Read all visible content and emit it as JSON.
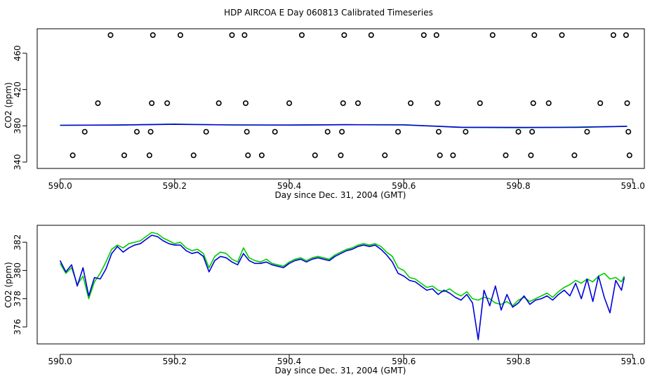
{
  "title": "HDP AIRCOA E  Day 060813  Calibrated Timeseries",
  "colors": {
    "green": "#00cc00",
    "blue": "#0000dd",
    "points": "#000000"
  },
  "chart_data": [
    {
      "type": "scatter",
      "xlabel": "Day since Dec. 31, 2004 (GMT)",
      "ylabel": "CO2 (ppm)",
      "xlim": [
        589.96,
        591.02
      ],
      "ylim": [
        333,
        487
      ],
      "x_ticks": [
        590.0,
        590.2,
        590.4,
        590.6,
        590.8,
        591.0
      ],
      "x_tick_labels": [
        "590.0",
        "590.2",
        "590.4",
        "590.6",
        "590.8",
        "591.0"
      ],
      "y_ticks": [
        340,
        380,
        420,
        460
      ],
      "y_tick_labels": [
        "340",
        "380",
        "420",
        "460"
      ],
      "points": [
        [
          590.022,
          347.5
        ],
        [
          590.043,
          373.5
        ],
        [
          590.066,
          405.0
        ],
        [
          590.088,
          480.0
        ],
        [
          590.112,
          347.5
        ],
        [
          590.134,
          373.5
        ],
        [
          590.156,
          347.5
        ],
        [
          590.158,
          373.5
        ],
        [
          590.16,
          405.0
        ],
        [
          590.162,
          480.0
        ],
        [
          590.187,
          405.0
        ],
        [
          590.21,
          480.0
        ],
        [
          590.233,
          347.5
        ],
        [
          590.255,
          373.5
        ],
        [
          590.277,
          405.0
        ],
        [
          590.3,
          480.0
        ],
        [
          590.322,
          480.0
        ],
        [
          590.324,
          405.0
        ],
        [
          590.326,
          373.5
        ],
        [
          590.328,
          347.5
        ],
        [
          590.352,
          347.5
        ],
        [
          590.375,
          373.5
        ],
        [
          590.4,
          405.0
        ],
        [
          590.422,
          480.0
        ],
        [
          590.445,
          347.5
        ],
        [
          590.467,
          373.5
        ],
        [
          590.49,
          347.5
        ],
        [
          590.492,
          373.5
        ],
        [
          590.494,
          405.0
        ],
        [
          590.496,
          480.0
        ],
        [
          590.52,
          405.0
        ],
        [
          590.543,
          480.0
        ],
        [
          590.567,
          347.5
        ],
        [
          590.59,
          373.5
        ],
        [
          590.612,
          405.0
        ],
        [
          590.635,
          480.0
        ],
        [
          590.657,
          480.0
        ],
        [
          590.659,
          405.0
        ],
        [
          590.661,
          373.5
        ],
        [
          590.663,
          347.5
        ],
        [
          590.686,
          347.5
        ],
        [
          590.708,
          373.5
        ],
        [
          590.733,
          405.0
        ],
        [
          590.755,
          480.0
        ],
        [
          590.778,
          347.5
        ],
        [
          590.8,
          373.5
        ],
        [
          590.822,
          347.5
        ],
        [
          590.824,
          373.5
        ],
        [
          590.826,
          405.0
        ],
        [
          590.828,
          480.0
        ],
        [
          590.853,
          405.0
        ],
        [
          590.876,
          480.0
        ],
        [
          590.898,
          347.5
        ],
        [
          590.92,
          373.5
        ],
        [
          590.943,
          405.0
        ],
        [
          590.966,
          480.0
        ],
        [
          590.988,
          480.0
        ],
        [
          590.99,
          405.0
        ],
        [
          590.992,
          373.5
        ],
        [
          590.994,
          347.5
        ]
      ],
      "series": [
        {
          "color": "#00cc00",
          "x": [
            590.0,
            590.1,
            590.2,
            590.3,
            590.4,
            590.5,
            590.6,
            590.7,
            590.8,
            590.9,
            590.99
          ],
          "y": [
            380.6,
            381.0,
            381.9,
            381.0,
            380.8,
            381.3,
            381.2,
            378.2,
            378.0,
            378.6,
            379.4
          ]
        },
        {
          "color": "#0000dd",
          "x": [
            590.0,
            590.1,
            590.2,
            590.3,
            590.4,
            590.5,
            590.6,
            590.7,
            590.8,
            590.9,
            590.99
          ],
          "y": [
            380.6,
            380.8,
            381.7,
            381.0,
            380.8,
            381.2,
            381.0,
            378.4,
            378.2,
            378.3,
            379.4
          ]
        }
      ]
    },
    {
      "type": "line",
      "xlabel": "Day since Dec. 31, 2004 (GMT)",
      "ylabel": "CO2 (ppm)",
      "xlim": [
        589.96,
        591.02
      ],
      "ylim": [
        374.8,
        383.2
      ],
      "x_ticks": [
        590.0,
        590.2,
        590.4,
        590.6,
        590.8,
        591.0
      ],
      "x_tick_labels": [
        "590.0",
        "590.2",
        "590.4",
        "590.6",
        "590.8",
        "591.0"
      ],
      "y_ticks": [
        376,
        378,
        380,
        382
      ],
      "y_tick_labels": [
        "376",
        "378",
        "380",
        "382"
      ],
      "series": [
        {
          "color": "#00cc00",
          "x": [
            590.0,
            590.01,
            590.02,
            590.03,
            590.04,
            590.05,
            590.06,
            590.07,
            590.08,
            590.09,
            590.1,
            590.11,
            590.12,
            590.13,
            590.14,
            590.15,
            590.16,
            590.17,
            590.18,
            590.19,
            590.2,
            590.21,
            590.22,
            590.23,
            590.24,
            590.25,
            590.26,
            590.27,
            590.28,
            590.29,
            590.3,
            590.31,
            590.32,
            590.33,
            590.34,
            590.35,
            590.36,
            590.37,
            590.38,
            590.39,
            590.4,
            590.41,
            590.42,
            590.43,
            590.44,
            590.45,
            590.46,
            590.47,
            590.48,
            590.49,
            590.5,
            590.51,
            590.52,
            590.53,
            590.54,
            590.55,
            590.56,
            590.57,
            590.58,
            590.59,
            590.6,
            590.61,
            590.62,
            590.63,
            590.64,
            590.65,
            590.66,
            590.67,
            590.68,
            590.69,
            590.7,
            590.71,
            590.72,
            590.73,
            590.74,
            590.75,
            590.76,
            590.77,
            590.78,
            590.79,
            590.8,
            590.81,
            590.82,
            590.83,
            590.84,
            590.85,
            590.86,
            590.87,
            590.88,
            590.89,
            590.9,
            590.91,
            590.92,
            590.93,
            590.94,
            590.95,
            590.96,
            590.97,
            590.98,
            590.985
          ],
          "y": [
            380.5,
            379.8,
            380.2,
            379.0,
            379.6,
            378.0,
            379.2,
            379.8,
            380.6,
            381.5,
            381.8,
            381.6,
            381.9,
            382.0,
            382.1,
            382.4,
            382.7,
            382.6,
            382.3,
            382.1,
            381.9,
            382.0,
            381.6,
            381.4,
            381.5,
            381.2,
            380.2,
            381.0,
            381.3,
            381.2,
            380.8,
            380.6,
            381.6,
            380.9,
            380.7,
            380.6,
            380.8,
            380.5,
            380.4,
            380.3,
            380.6,
            380.8,
            380.9,
            380.7,
            380.9,
            381.0,
            380.9,
            380.8,
            381.1,
            381.3,
            381.5,
            381.6,
            381.8,
            381.9,
            381.8,
            381.9,
            381.7,
            381.3,
            381.0,
            380.2,
            380.0,
            379.5,
            379.4,
            379.1,
            378.8,
            378.9,
            378.6,
            378.5,
            378.7,
            378.4,
            378.2,
            378.5,
            378.0,
            377.9,
            378.1,
            378.0,
            377.7,
            377.6,
            377.8,
            377.5,
            377.9,
            378.1,
            377.8,
            378.0,
            378.2,
            378.4,
            378.1,
            378.5,
            378.8,
            379.0,
            379.3,
            379.1,
            379.4,
            379.2,
            379.6,
            379.8,
            379.4,
            379.5,
            379.2,
            379.6
          ]
        },
        {
          "color": "#0000dd",
          "x": [
            590.0,
            590.01,
            590.02,
            590.03,
            590.04,
            590.05,
            590.06,
            590.07,
            590.08,
            590.09,
            590.1,
            590.11,
            590.12,
            590.13,
            590.14,
            590.15,
            590.16,
            590.17,
            590.18,
            590.19,
            590.2,
            590.21,
            590.22,
            590.23,
            590.24,
            590.25,
            590.26,
            590.27,
            590.28,
            590.29,
            590.3,
            590.31,
            590.32,
            590.33,
            590.34,
            590.35,
            590.36,
            590.37,
            590.38,
            590.39,
            590.4,
            590.41,
            590.42,
            590.43,
            590.44,
            590.45,
            590.46,
            590.47,
            590.48,
            590.49,
            590.5,
            590.51,
            590.52,
            590.53,
            590.54,
            590.55,
            590.56,
            590.57,
            590.58,
            590.59,
            590.6,
            590.61,
            590.62,
            590.63,
            590.64,
            590.65,
            590.66,
            590.67,
            590.68,
            590.69,
            590.7,
            590.71,
            590.72,
            590.73,
            590.74,
            590.75,
            590.76,
            590.77,
            590.78,
            590.79,
            590.8,
            590.81,
            590.82,
            590.83,
            590.84,
            590.85,
            590.86,
            590.87,
            590.88,
            590.89,
            590.9,
            590.91,
            590.92,
            590.93,
            590.94,
            590.95,
            590.96,
            590.97,
            590.98,
            590.985
          ],
          "y": [
            380.7,
            379.9,
            380.4,
            378.9,
            380.2,
            378.2,
            379.5,
            379.4,
            380.1,
            381.2,
            381.7,
            381.3,
            381.6,
            381.8,
            381.9,
            382.2,
            382.5,
            382.4,
            382.1,
            381.9,
            381.8,
            381.8,
            381.4,
            381.2,
            381.3,
            381.0,
            379.9,
            380.7,
            381.0,
            380.9,
            380.6,
            380.4,
            381.2,
            380.7,
            380.5,
            380.5,
            380.6,
            380.4,
            380.3,
            380.2,
            380.5,
            380.7,
            380.8,
            380.6,
            380.8,
            380.9,
            380.8,
            380.7,
            381.0,
            381.2,
            381.4,
            381.5,
            381.7,
            381.8,
            381.7,
            381.8,
            381.5,
            381.1,
            380.6,
            379.8,
            379.6,
            379.3,
            379.2,
            378.9,
            378.6,
            378.7,
            378.3,
            378.6,
            378.4,
            378.1,
            377.9,
            378.3,
            377.7,
            375.1,
            378.6,
            377.5,
            378.9,
            377.2,
            378.3,
            377.4,
            377.7,
            378.2,
            377.6,
            377.9,
            378.0,
            378.2,
            377.9,
            378.3,
            378.6,
            378.2,
            379.1,
            378.0,
            379.4,
            377.8,
            379.6,
            378.1,
            377.0,
            379.3,
            378.6,
            379.5
          ]
        }
      ]
    }
  ]
}
